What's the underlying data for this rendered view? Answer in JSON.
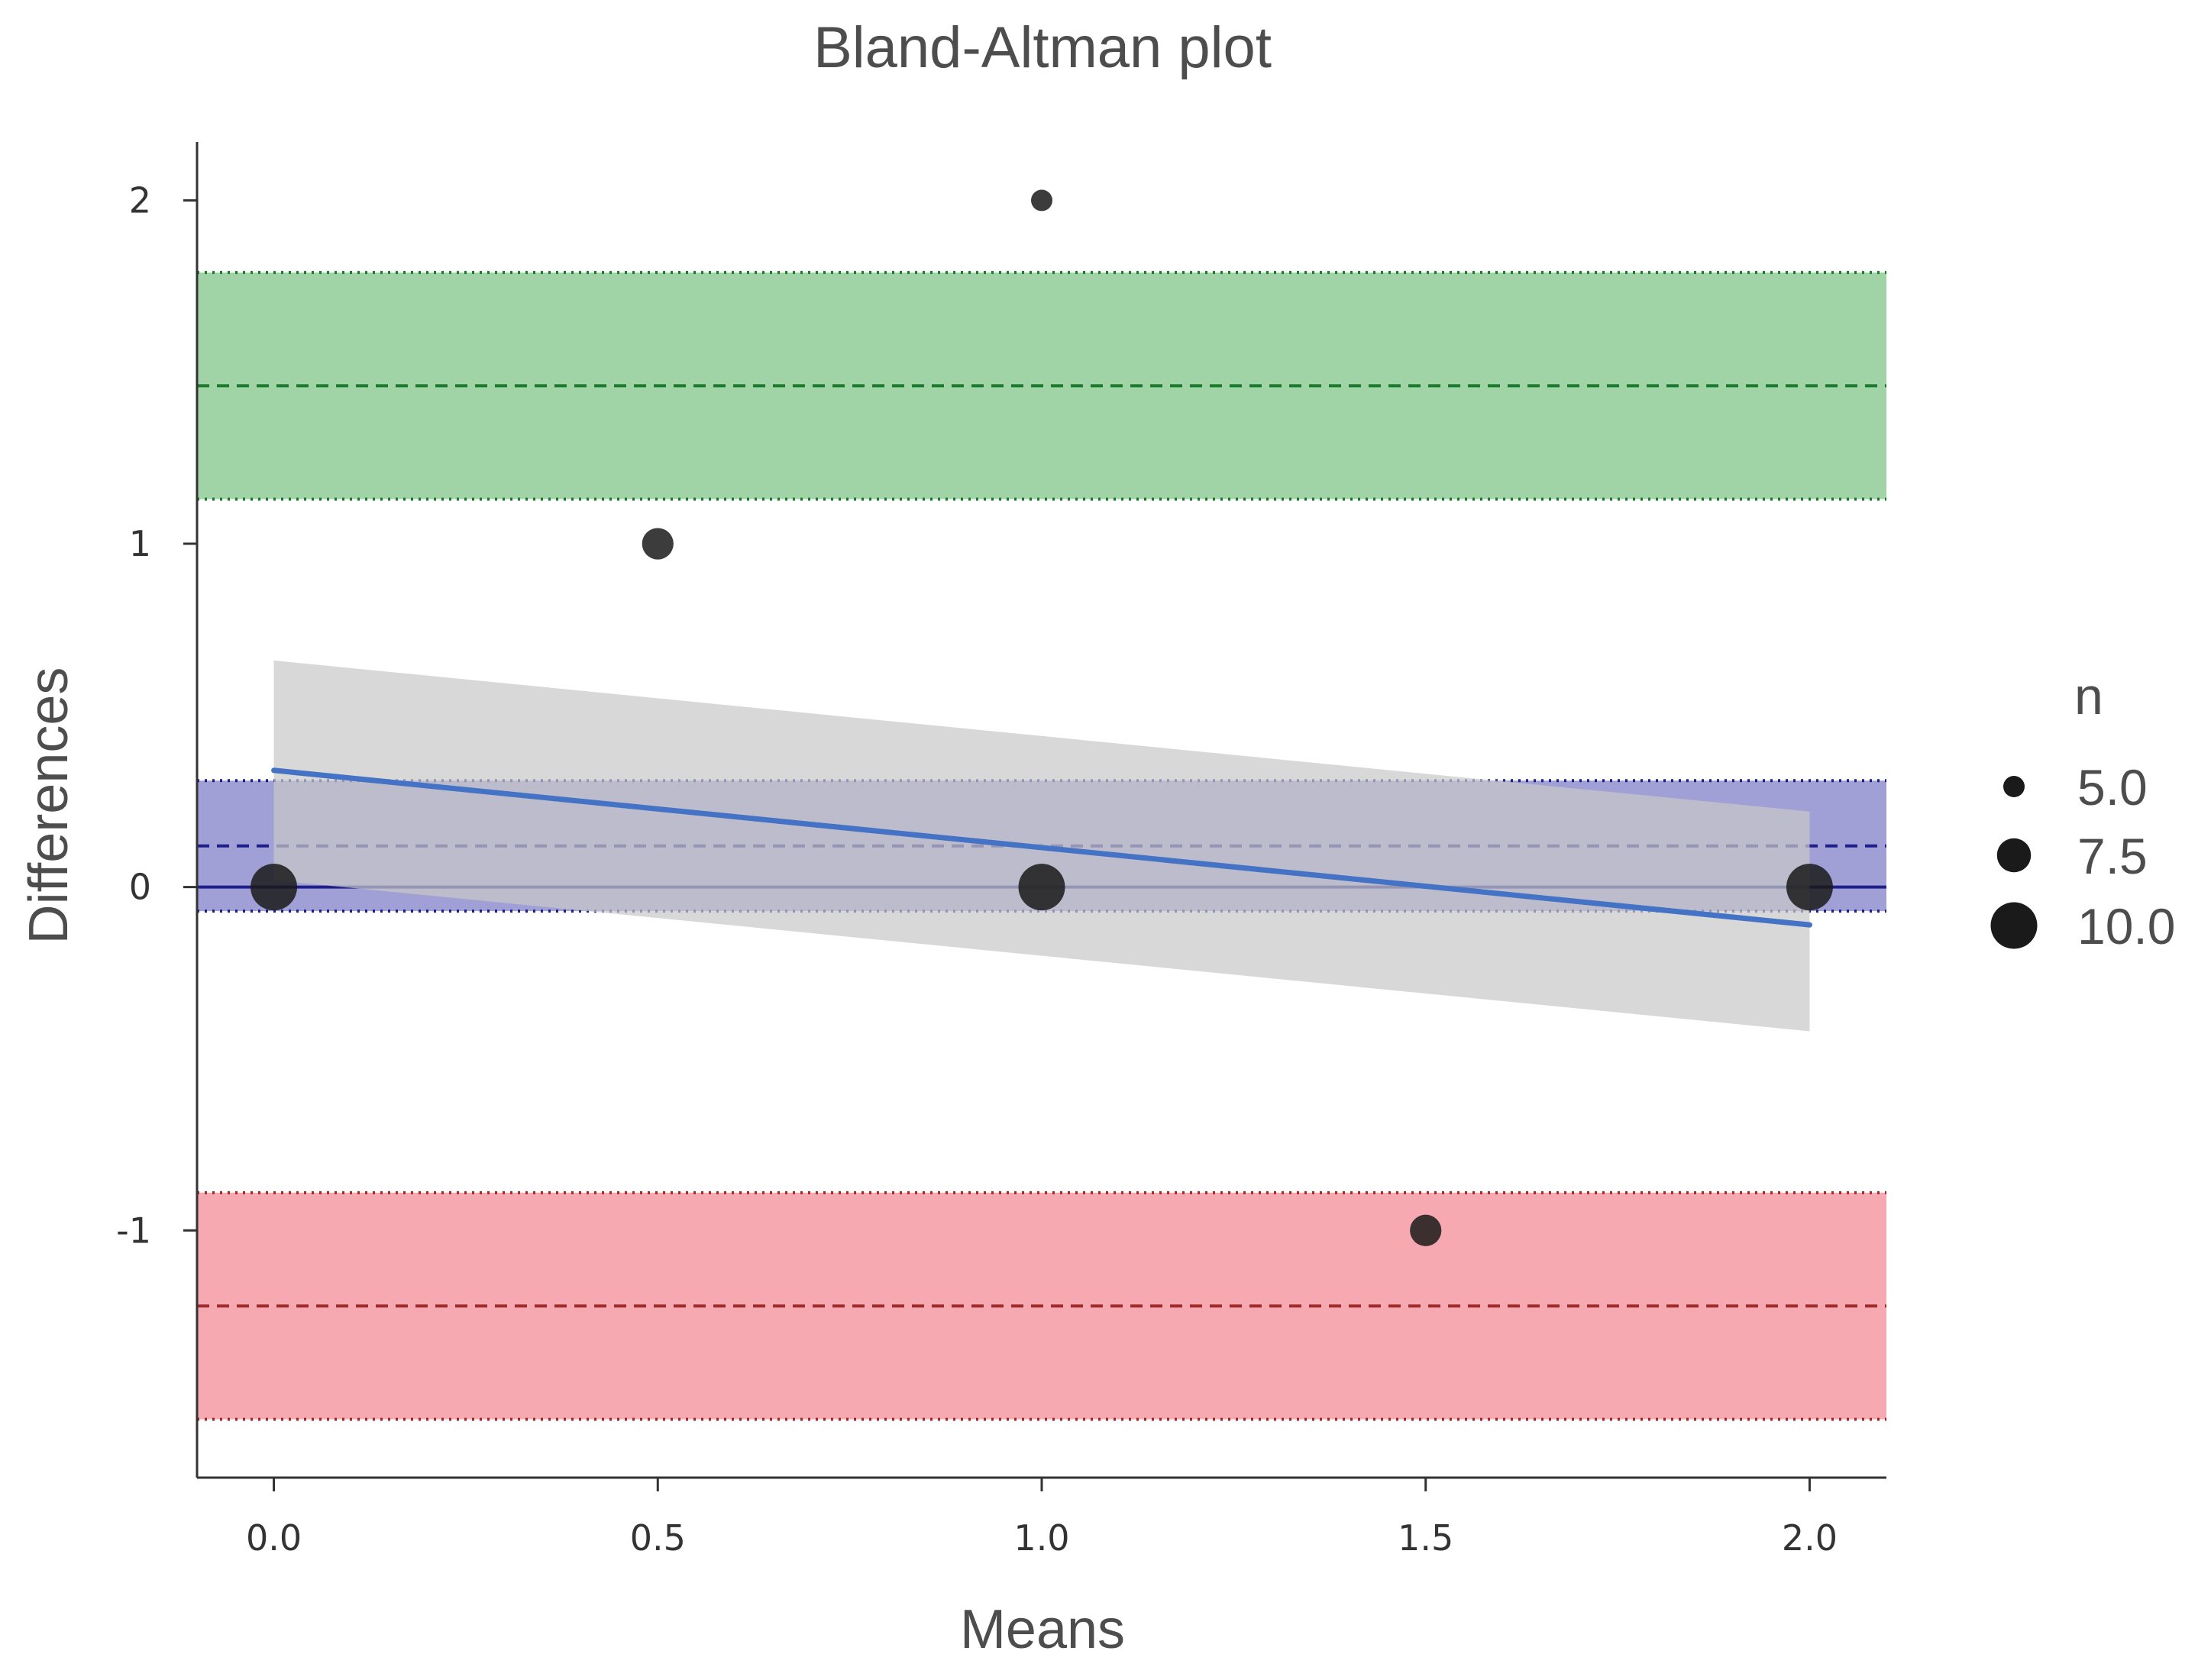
{
  "chart_data": {
    "type": "scatter",
    "title": "Bland-Altman plot",
    "xlabel": "Means",
    "ylabel": "Differences",
    "xlim": [
      -0.1,
      2.1
    ],
    "ylim": [
      -1.72,
      2.17
    ],
    "x_ticks": [
      0.0,
      0.5,
      1.0,
      1.5,
      2.0
    ],
    "x_tick_labels": [
      "0.0",
      "0.5",
      "1.0",
      "1.5",
      "2.0"
    ],
    "y_ticks": [
      -1,
      0,
      1,
      2
    ],
    "y_tick_labels": [
      "-1",
      "0",
      "1",
      "2"
    ],
    "grid": false,
    "points": [
      {
        "x": 0.0,
        "y": 0,
        "n": 10
      },
      {
        "x": 0.5,
        "y": 1,
        "n": 7
      },
      {
        "x": 1.0,
        "y": 2,
        "n": 5
      },
      {
        "x": 1.0,
        "y": 0,
        "n": 10
      },
      {
        "x": 1.5,
        "y": -1,
        "n": 7
      },
      {
        "x": 2.0,
        "y": 0,
        "n": 10
      }
    ],
    "zero_line": 0,
    "bias": {
      "mean": 0.12,
      "ci_lower": -0.07,
      "ci_upper": 0.31,
      "color": "#1f1f8a",
      "fill": "#8f8fd0"
    },
    "upper_loa": {
      "mean": 1.46,
      "ci_lower": 1.13,
      "ci_upper": 1.79,
      "color": "#1b7a2e",
      "fill": "#8fcb95"
    },
    "lower_loa": {
      "mean": -1.22,
      "ci_lower": -1.55,
      "ci_upper": -0.89,
      "color": "#a02a2a",
      "fill": "#f59aa3"
    },
    "regression": {
      "x": [
        0.0,
        2.0
      ],
      "y": [
        0.34,
        -0.11
      ],
      "ci_upper": [
        0.66,
        0.22
      ],
      "ci_lower": [
        0.02,
        -0.42
      ],
      "color": "#4472c4"
    },
    "size_legend": {
      "title": "n",
      "position": "right",
      "entries": [
        {
          "label": "5.0",
          "value": 5.0
        },
        {
          "label": "7.5",
          "value": 7.5
        },
        {
          "label": "10.0",
          "value": 10.0
        }
      ]
    },
    "colors": {
      "points": "#1a1a1a",
      "axis": "#333333",
      "ci_band": "#c8c8c8"
    }
  }
}
